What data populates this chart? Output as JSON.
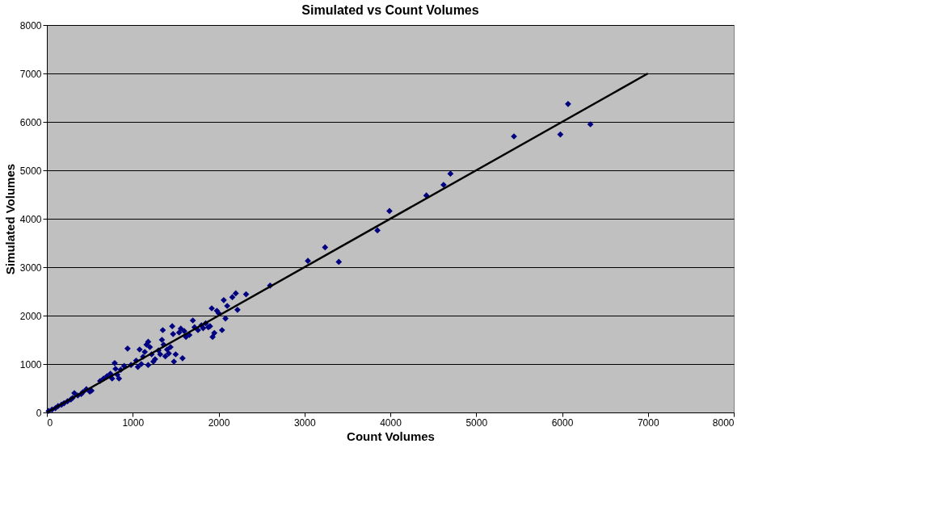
{
  "chart_data": {
    "type": "scatter",
    "title": "Simulated vs Count Volumes",
    "xlabel": "Count Volumes",
    "ylabel": "Simulated Volumes",
    "xlim": [
      0,
      8000
    ],
    "xticks": [
      0,
      1000,
      2000,
      3000,
      4000,
      5000,
      6000,
      7000,
      8000
    ],
    "ylim": [
      0,
      8000
    ],
    "yticks": [
      0,
      1000,
      2000,
      3000,
      4000,
      5000,
      6000,
      7000,
      8000
    ],
    "grid": "y",
    "marker": "diamond",
    "series": [
      {
        "color": "#000080",
        "x": [
          20,
          60,
          100,
          130,
          170,
          200,
          240,
          280,
          300,
          320,
          360,
          400,
          420,
          460,
          500,
          520,
          620,
          660,
          700,
          740,
          760,
          790,
          800,
          820,
          840,
          860,
          900,
          940,
          980,
          1040,
          1060,
          1080,
          1100,
          1120,
          1140,
          1160,
          1180,
          1180,
          1200,
          1220,
          1240,
          1260,
          1300,
          1320,
          1340,
          1350,
          1360,
          1380,
          1400,
          1420,
          1440,
          1460,
          1470,
          1480,
          1500,
          1540,
          1560,
          1580,
          1600,
          1620,
          1660,
          1700,
          1720,
          1760,
          1800,
          1820,
          1850,
          1880,
          1900,
          1920,
          1930,
          1950,
          1980,
          2000,
          2040,
          2060,
          2080,
          2100,
          2160,
          2200,
          2220,
          2320,
          2600,
          3040,
          3240,
          3400,
          3850,
          3990,
          4420,
          4620,
          4700,
          5440,
          5980,
          6070,
          6330
        ],
        "values": [
          30,
          60,
          90,
          130,
          160,
          190,
          230,
          270,
          300,
          400,
          350,
          380,
          420,
          480,
          430,
          450,
          650,
          700,
          750,
          800,
          700,
          1020,
          900,
          780,
          700,
          880,
          960,
          1320,
          980,
          1070,
          940,
          1300,
          1000,
          1150,
          1250,
          1400,
          1460,
          980,
          1350,
          1200,
          1050,
          1100,
          1280,
          1200,
          1500,
          1700,
          1400,
          1160,
          1300,
          1220,
          1350,
          1780,
          1620,
          1050,
          1200,
          1650,
          1730,
          1120,
          1680,
          1560,
          1600,
          1900,
          1760,
          1700,
          1800,
          1740,
          1840,
          1760,
          1780,
          2150,
          1560,
          1640,
          2100,
          2050,
          1700,
          2320,
          1940,
          2200,
          2380,
          2460,
          2120,
          2440,
          2620,
          3130,
          3410,
          3110,
          3760,
          4160,
          4480,
          4700,
          4930,
          5700,
          5740,
          6370,
          5950
        ]
      },
      {
        "type": "line",
        "color": "#000000",
        "line_style": "solid",
        "marker": "none",
        "x": [
          0,
          7000
        ],
        "values": [
          0,
          7000
        ]
      }
    ]
  }
}
